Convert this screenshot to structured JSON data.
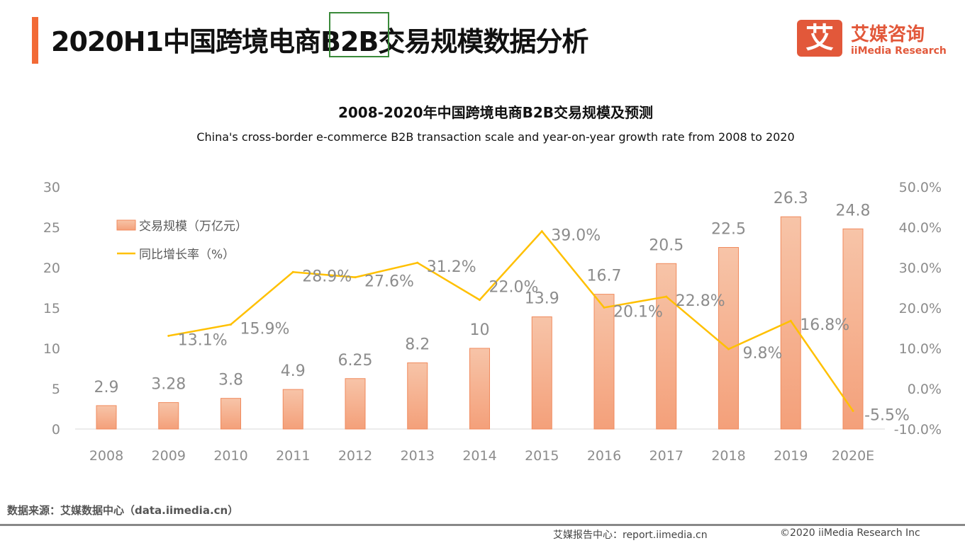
{
  "header": {
    "title": "2020H1中国跨境电商B2B交易规模数据分析",
    "logo_cn": "艾媒咨询",
    "logo_en": "iiMedia Research",
    "logo_mark": "艾"
  },
  "chart_data": {
    "type": "bar+line",
    "title": "2008-2020年中国跨境电商B2B交易规模及预测",
    "subtitle": "China's cross-border e-commerce B2B transaction scale and year-on-year growth rate  from 2008 to 2020",
    "categories": [
      "2008",
      "2009",
      "2010",
      "2011",
      "2012",
      "2013",
      "2014",
      "2015",
      "2016",
      "2017",
      "2018",
      "2019",
      "2020E"
    ],
    "series": [
      {
        "name": "交易规模（万亿元）",
        "type": "bar",
        "axis": "left",
        "values": [
          2.9,
          3.28,
          3.8,
          4.9,
          6.25,
          8.2,
          10,
          13.9,
          16.7,
          20.5,
          22.5,
          26.3,
          24.8
        ],
        "labels": [
          "2.9",
          "3.28",
          "3.8",
          "4.9",
          "6.25",
          "8.2",
          "10",
          "13.9",
          "16.7",
          "20.5",
          "22.5",
          "26.3",
          "24.8"
        ],
        "color": "#f4a582"
      },
      {
        "name": "同比增长率（%）",
        "type": "line",
        "axis": "right",
        "values": [
          null,
          13.1,
          15.9,
          28.9,
          27.6,
          31.2,
          22.0,
          39.0,
          20.1,
          22.8,
          9.8,
          16.8,
          -5.5
        ],
        "labels": [
          "",
          "13.1%",
          "15.9%",
          "28.9%",
          "27.6%",
          "31.2%",
          "22.0%",
          "39.0%",
          "20.1%",
          "22.8%",
          "9.8%",
          "16.8%",
          "-5.5%"
        ],
        "color": "#ffc000"
      }
    ],
    "y_left": {
      "ylim": [
        0,
        30
      ],
      "ticks": [
        "0",
        "5",
        "10",
        "15",
        "20",
        "25",
        "30"
      ]
    },
    "y_right": {
      "ylim": [
        -10,
        50
      ],
      "ticks": [
        "-10.0%",
        "0.0%",
        "10.0%",
        "20.0%",
        "30.0%",
        "40.0%",
        "50.0%"
      ]
    },
    "legend": "top-left",
    "grid": false
  },
  "footer": {
    "source": "数据来源：艾媒数据中心（data.iimedia.cn）",
    "report": "艾媒报告中心：report.iimedia.cn",
    "copyright": "©2020  iiMedia Research  Inc"
  }
}
